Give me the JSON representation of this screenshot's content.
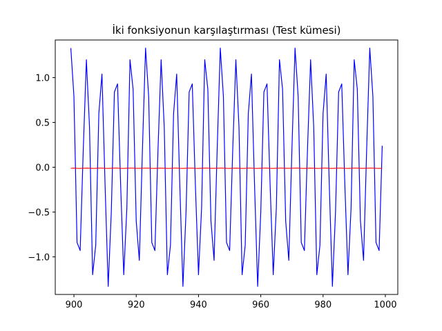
{
  "chart_data": {
    "type": "line",
    "title": "İki fonksiyonun karşılaştırması (Test kümesi)",
    "xlabel": "",
    "ylabel": "",
    "xlim": [
      894,
      1004
    ],
    "ylim": [
      -1.42,
      1.42
    ],
    "xticks": [
      900,
      920,
      940,
      960,
      980,
      1000
    ],
    "yticks": [
      -1.0,
      -0.5,
      0.0,
      0.5,
      1.0
    ],
    "ytick_labels": [
      "−1.0",
      "−0.5",
      "0.0",
      "0.5",
      "1.0"
    ],
    "grid": false,
    "series": [
      {
        "color": "#0000ff",
        "x": [
          899,
          900,
          901,
          902,
          903,
          904,
          905,
          906,
          907,
          908,
          909,
          910,
          911,
          912,
          913,
          914,
          915,
          916,
          917,
          918,
          919,
          920,
          921,
          922,
          923,
          924,
          925,
          926,
          927,
          928,
          929,
          930,
          931,
          932,
          933,
          934,
          935,
          936,
          937,
          938,
          939,
          940,
          941,
          942,
          943,
          944,
          945,
          946,
          947,
          948,
          949,
          950,
          951,
          952,
          953,
          954,
          955,
          956,
          957,
          958,
          959,
          960,
          961,
          962,
          963,
          964,
          965,
          966,
          967,
          968,
          969,
          970,
          971,
          972,
          973,
          974,
          975,
          976,
          977,
          978,
          979,
          980,
          981,
          982,
          983,
          984,
          985,
          986,
          987,
          988,
          989,
          990,
          991,
          992,
          993,
          994,
          995,
          996,
          997,
          998,
          999
        ],
        "y": [
          1.33,
          0.79,
          -0.84,
          -0.93,
          0.2,
          1.2,
          0.45,
          -1.2,
          -0.87,
          0.6,
          1.04,
          -0.2,
          -1.33,
          -0.5,
          0.84,
          0.93,
          -0.2,
          -1.2,
          -0.45,
          1.2,
          0.87,
          -0.6,
          -1.04,
          0.2,
          1.33,
          0.79,
          -0.84,
          -0.93,
          0.2,
          1.2,
          0.45,
          -1.2,
          -0.87,
          0.6,
          1.04,
          -0.2,
          -1.33,
          -0.5,
          0.84,
          0.93,
          -0.2,
          -1.2,
          -0.45,
          1.2,
          0.87,
          -0.6,
          -1.04,
          0.2,
          1.33,
          0.79,
          -0.84,
          -0.93,
          0.2,
          1.2,
          0.45,
          -1.2,
          -0.87,
          0.6,
          1.04,
          -0.2,
          -1.33,
          -0.5,
          0.84,
          0.93,
          -0.2,
          -1.2,
          -0.45,
          1.2,
          0.87,
          -0.6,
          -1.04,
          0.2,
          1.33,
          0.79,
          -0.84,
          -0.93,
          0.2,
          1.2,
          0.45,
          -1.2,
          -0.87,
          0.6,
          1.04,
          -0.2,
          -1.33,
          -0.5,
          0.84,
          0.93,
          -0.2,
          -1.2,
          -0.45,
          1.2,
          0.87,
          -0.6,
          -1.04,
          0.2,
          1.33,
          0.79,
          -0.84,
          -0.93,
          0.24
        ]
      },
      {
        "color": "#ff0000",
        "x": [
          899,
          900,
          901,
          902,
          903,
          904,
          905,
          906,
          907,
          908,
          909,
          910,
          911,
          912,
          913,
          914,
          915,
          916,
          917,
          918,
          919,
          920,
          921,
          922,
          923,
          924,
          925,
          926,
          927,
          928,
          929,
          930,
          931,
          932,
          933,
          934,
          935,
          936,
          937,
          938,
          939,
          940,
          941,
          942,
          943,
          944,
          945,
          946,
          947,
          948,
          949,
          950,
          951,
          952,
          953,
          954,
          955,
          956,
          957,
          958,
          959,
          960,
          961,
          962,
          963,
          964,
          965,
          966,
          967,
          968,
          969,
          970,
          971,
          972,
          973,
          974,
          975,
          976,
          977,
          978,
          979,
          980,
          981,
          982,
          983,
          984,
          985,
          986,
          987,
          988,
          989,
          990,
          991,
          992,
          993,
          994,
          995,
          996,
          997,
          998,
          999
        ],
        "y": [
          -0.012,
          -0.01,
          -0.012,
          -0.013,
          -0.011,
          -0.01,
          -0.011,
          -0.013,
          -0.012,
          -0.01,
          -0.01,
          -0.012,
          -0.013,
          -0.011,
          -0.01,
          -0.01,
          -0.012,
          -0.013,
          -0.011,
          -0.01,
          -0.01,
          -0.012,
          -0.012,
          -0.011,
          -0.01,
          -0.01,
          -0.012,
          -0.013,
          -0.011,
          -0.01,
          -0.011,
          -0.013,
          -0.012,
          -0.01,
          -0.01,
          -0.012,
          -0.013,
          -0.011,
          -0.01,
          -0.01,
          -0.012,
          -0.013,
          -0.011,
          -0.01,
          -0.01,
          -0.012,
          -0.012,
          -0.011,
          -0.01,
          -0.01,
          -0.012,
          -0.013,
          -0.011,
          -0.01,
          -0.011,
          -0.013,
          -0.012,
          -0.01,
          -0.01,
          -0.012,
          -0.013,
          -0.011,
          -0.01,
          -0.01,
          -0.012,
          -0.013,
          -0.011,
          -0.01,
          -0.01,
          -0.012,
          -0.012,
          -0.011,
          -0.01,
          -0.01,
          -0.012,
          -0.013,
          -0.011,
          -0.01,
          -0.011,
          -0.013,
          -0.012,
          -0.01,
          -0.01,
          -0.012,
          -0.013,
          -0.011,
          -0.01,
          -0.01,
          -0.012,
          -0.013,
          -0.011,
          -0.01,
          -0.01,
          -0.012,
          -0.012,
          -0.011,
          -0.01,
          -0.01,
          -0.012,
          -0.013,
          -0.011
        ]
      }
    ]
  }
}
